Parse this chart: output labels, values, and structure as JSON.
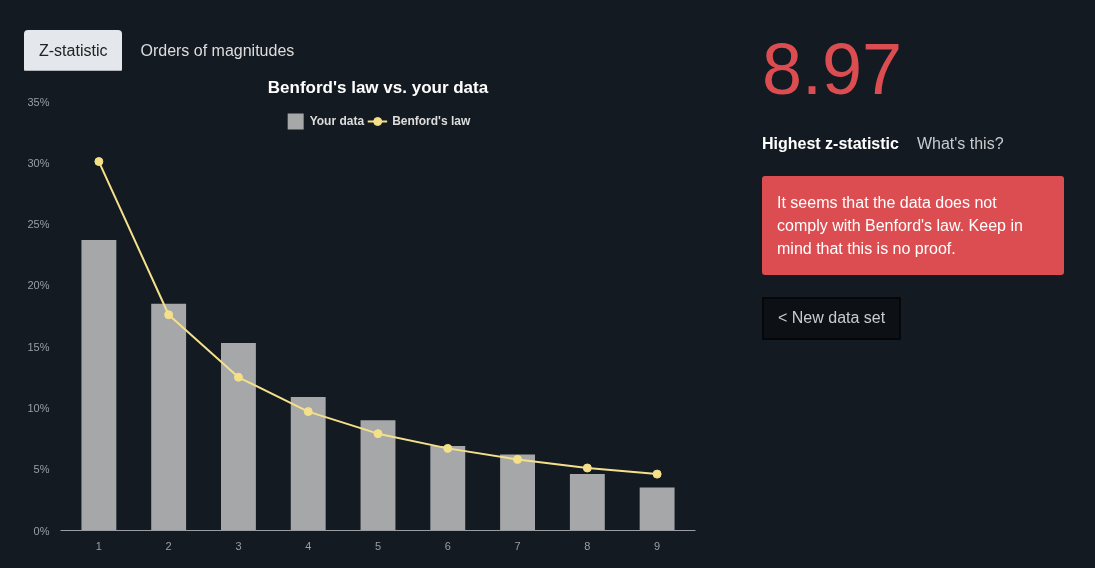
{
  "chart_data": {
    "type": "bar",
    "title": "Benford's law vs. your data",
    "categories": [
      "1",
      "2",
      "3",
      "4",
      "5",
      "6",
      "7",
      "8",
      "9"
    ],
    "series": [
      {
        "name": "Your data",
        "color": "#a5a7a9",
        "values": [
          23.7,
          18.5,
          15.3,
          10.9,
          9.0,
          6.9,
          6.2,
          4.6,
          3.5
        ]
      },
      {
        "name": "Benford's law",
        "type": "line",
        "color": "#f5e08a",
        "values": [
          30.1,
          17.6,
          12.5,
          9.7,
          7.9,
          6.7,
          5.8,
          5.1,
          4.6
        ]
      }
    ],
    "ylim": [
      0,
      35
    ],
    "yticks": [
      {
        "value": 0,
        "label": "0%"
      },
      {
        "value": 5,
        "label": "5%"
      },
      {
        "value": 10,
        "label": "10%"
      },
      {
        "value": 15,
        "label": "15%"
      },
      {
        "value": 20,
        "label": "20%"
      },
      {
        "value": 25,
        "label": "25%"
      },
      {
        "value": 30,
        "label": "30%"
      },
      {
        "value": 35,
        "label": "35%"
      }
    ],
    "grid": false,
    "legend": "top",
    "marker": "circle",
    "line_style": "solid",
    "annotations": [
      "Z-statistic",
      "Orders of magnitudes",
      "8.97",
      "Highest z-statistic",
      "What's this?",
      "It seems that the data does not comply with Benford's law. Keep in mind that this is no proof.",
      "< New data set"
    ]
  }
}
